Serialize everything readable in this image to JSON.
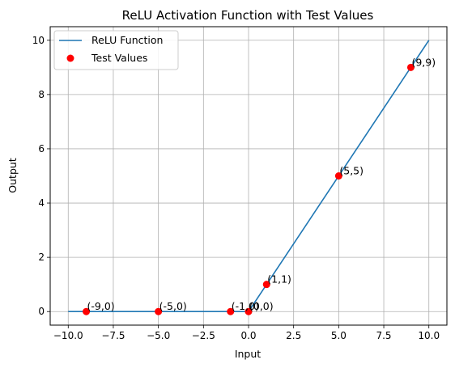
{
  "chart_data": {
    "type": "line",
    "title": "ReLU Activation Function with Test Values",
    "xlabel": "Input",
    "ylabel": "Output",
    "xlim": [
      -11,
      11
    ],
    "ylim": [
      -0.5,
      10.5
    ],
    "grid": true,
    "legend_position": "top-left",
    "x_ticks": [
      -10,
      -7.5,
      -5,
      -2.5,
      0,
      2.5,
      5,
      7.5,
      10
    ],
    "x_tick_labels": [
      "−10.0",
      "−7.5",
      "−5.0",
      "−2.5",
      "0.0",
      "2.5",
      "5.0",
      "7.5",
      "10.0"
    ],
    "y_ticks": [
      0,
      2,
      4,
      6,
      8,
      10
    ],
    "y_tick_labels": [
      "0",
      "2",
      "4",
      "6",
      "8",
      "10"
    ],
    "series": [
      {
        "name": "ReLU Function",
        "kind": "line",
        "color": "#1f77b4",
        "points": [
          [
            -10,
            0
          ],
          [
            0,
            0
          ],
          [
            10,
            10
          ]
        ]
      },
      {
        "name": "Test Values",
        "kind": "scatter",
        "color": "#ff0000",
        "points": [
          {
            "x": -9,
            "y": 0,
            "label": "(-9,0)"
          },
          {
            "x": -5,
            "y": 0,
            "label": "(-5,0)"
          },
          {
            "x": -1,
            "y": 0,
            "label": "(-1,0)"
          },
          {
            "x": 0,
            "y": 0,
            "label": "(0,0)"
          },
          {
            "x": 1,
            "y": 1,
            "label": "(1,1)"
          },
          {
            "x": 5,
            "y": 5,
            "label": "(5,5)"
          },
          {
            "x": 9,
            "y": 9,
            "label": "(9,9)"
          }
        ]
      }
    ]
  }
}
